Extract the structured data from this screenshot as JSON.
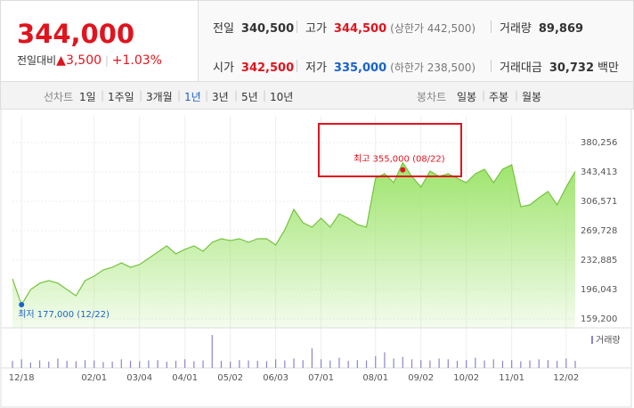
{
  "quote": {
    "price": "344,000",
    "change_label": "전일대비",
    "change": "3,500",
    "change_pct": "+1.03%",
    "rows": [
      [
        {
          "label": "전일",
          "value": "340,500"
        },
        {
          "label": "고가",
          "value": "344,500",
          "extra": "(상한가 442,500)"
        },
        {
          "label": "거래량",
          "value": "89,869"
        }
      ],
      [
        {
          "label": "시가",
          "value": "342,500"
        },
        {
          "label": "저가",
          "value": "335,000",
          "extra": "(하한가 238,500)"
        },
        {
          "label": "거래대금",
          "value": "30,732",
          "unit": "백만"
        }
      ]
    ]
  },
  "tabs": {
    "line_label": "선차트",
    "periods": [
      "1일",
      "1주일",
      "3개월",
      "1년",
      "3년",
      "5년",
      "10년"
    ],
    "selected": 3,
    "candle_label": "봉차트",
    "candles": [
      "일봉",
      "주봉",
      "월봉"
    ]
  },
  "chart_data": {
    "type": "area",
    "color": "#9ee46c",
    "line_color": "#74c43c",
    "categories": [
      null,
      "12/18",
      null,
      null,
      null,
      null,
      null,
      null,
      null,
      "02/01",
      null,
      null,
      null,
      null,
      "03/04",
      null,
      null,
      null,
      null,
      "04/01",
      null,
      null,
      null,
      null,
      "05/02",
      null,
      null,
      null,
      null,
      "06/03",
      null,
      null,
      null,
      null,
      "07/01",
      null,
      null,
      null,
      null,
      null,
      "08/01",
      null,
      null,
      null,
      null,
      "09/02",
      null,
      null,
      null,
      null,
      "10/02",
      null,
      null,
      null,
      null,
      "11/01",
      null,
      null,
      null,
      null,
      null,
      "12/02",
      null
    ],
    "values": [
      209400,
      177000,
      196000,
      203900,
      207200,
      203900,
      196000,
      188200,
      207200,
      212800,
      220600,
      223900,
      229500,
      223900,
      227300,
      235100,
      242900,
      250700,
      240700,
      246300,
      250700,
      244000,
      255200,
      259700,
      257400,
      259700,
      255200,
      259700,
      259700,
      251900,
      270800,
      296500,
      279800,
      274200,
      285400,
      274200,
      290900,
      285400,
      277500,
      274200,
      335600,
      341200,
      330000,
      355000,
      337800,
      324400,
      344500,
      337800,
      341200,
      335600,
      330000,
      341200,
      346800,
      330000,
      346800,
      352300,
      299900,
      302100,
      311000,
      318900,
      302100,
      324400,
      344000
    ],
    "ylim": [
      159200,
      380256
    ],
    "yticks": [
      {
        "value": 159200,
        "label": "159,200"
      },
      {
        "value": 196043,
        "label": "196,043"
      },
      {
        "value": 232885,
        "label": "232,885"
      },
      {
        "value": 269728,
        "label": "269,728"
      },
      {
        "value": 306571,
        "label": "306,571"
      },
      {
        "value": 343413,
        "label": "343,413"
      },
      {
        "value": 380256,
        "label": "380,256"
      }
    ],
    "high_label": "최고 355,000 (08/22)",
    "low_label": "최저 177,000 (12/22)",
    "volume_label": "거래량",
    "volume_color": "#8b86c8",
    "volume": [
      90000,
      110000,
      70000,
      95000,
      80000,
      120000,
      90000,
      85000,
      100000,
      95000,
      75000,
      80000,
      110000,
      90000,
      85000,
      95000,
      100000,
      80000,
      90000,
      110000,
      85000,
      95000,
      420000,
      90000,
      80000,
      100000,
      95000,
      90000,
      85000,
      110000,
      95000,
      120000,
      100000,
      250000,
      110000,
      95000,
      130000,
      90000,
      100000,
      95000,
      150000,
      200000,
      120000,
      140000,
      110000,
      100000,
      95000,
      120000,
      110000,
      90000,
      100000,
      130000,
      95000,
      110000,
      90000,
      100000,
      85000,
      95000,
      110000,
      100000,
      90000,
      120000,
      89869
    ]
  }
}
